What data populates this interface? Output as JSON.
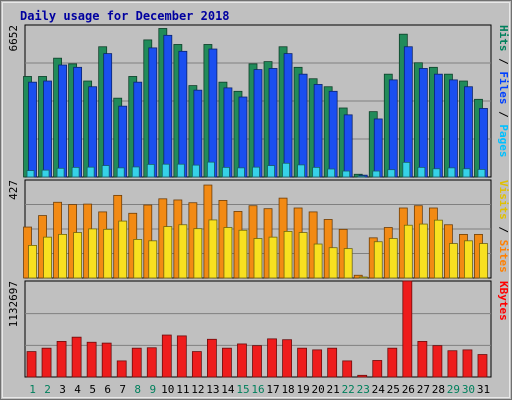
{
  "chart_data": [
    {
      "type": "bar",
      "panel": "top",
      "title": "Daily usage for December 2018",
      "ymax_label": "6652",
      "ylim": [
        0,
        6652
      ],
      "grid": true,
      "legend_right": [
        {
          "text": "Hits",
          "color": "#00805c"
        },
        {
          "text": "Files",
          "color": "#0040ff"
        },
        {
          "text": "Pages",
          "color": "#00c0ff"
        }
      ],
      "categories": [
        "1",
        "2",
        "3",
        "4",
        "5",
        "6",
        "7",
        "8",
        "9",
        "10",
        "11",
        "12",
        "13",
        "14",
        "15",
        "16",
        "17",
        "18",
        "19",
        "20",
        "21",
        "22",
        "23",
        "24",
        "25",
        "26",
        "27",
        "28",
        "29",
        "30",
        "31"
      ],
      "series": [
        {
          "name": "Hits",
          "color": "#218b5a",
          "values": [
            4400,
            4400,
            5200,
            4950,
            4200,
            5700,
            3450,
            4400,
            6000,
            6500,
            5800,
            4000,
            5800,
            4150,
            3750,
            4950,
            5050,
            5700,
            4800,
            4300,
            3950,
            3020,
            120,
            2860,
            4500,
            6250,
            5000,
            4800,
            4500,
            4200,
            3400
          ]
        },
        {
          "name": "Files",
          "color": "#1a4ff0",
          "values": [
            4150,
            4200,
            4900,
            4800,
            3950,
            5400,
            3100,
            4150,
            5650,
            6200,
            5500,
            3800,
            5600,
            3900,
            3500,
            4700,
            4750,
            5400,
            4500,
            4050,
            3750,
            2720,
            80,
            2540,
            4250,
            5700,
            4750,
            4500,
            4250,
            3950,
            3000
          ]
        },
        {
          "name": "Pages",
          "color": "#36d2e8",
          "values": [
            280,
            300,
            380,
            420,
            430,
            500,
            400,
            440,
            550,
            560,
            560,
            520,
            650,
            420,
            400,
            430,
            500,
            600,
            530,
            420,
            350,
            260,
            30,
            260,
            320,
            640,
            420,
            360,
            400,
            360,
            330
          ]
        }
      ]
    },
    {
      "type": "bar",
      "panel": "middle",
      "ymax_label": "427",
      "ylim": [
        0,
        427
      ],
      "grid": true,
      "legend_right": [
        {
          "text": "Visits",
          "color": "#e0c000"
        },
        {
          "text": "Sites",
          "color": "#ff8000"
        }
      ],
      "categories": [
        "1",
        "2",
        "3",
        "4",
        "5",
        "6",
        "7",
        "8",
        "9",
        "10",
        "11",
        "12",
        "13",
        "14",
        "15",
        "16",
        "17",
        "18",
        "19",
        "20",
        "21",
        "22",
        "23",
        "24",
        "25",
        "26",
        "27",
        "28",
        "29",
        "30",
        "31"
      ],
      "series": [
        {
          "name": "Sites",
          "color": "#f28a14",
          "values": [
            222,
            272,
            330,
            320,
            322,
            288,
            360,
            282,
            318,
            345,
            340,
            328,
            405,
            338,
            290,
            315,
            302,
            348,
            305,
            288,
            255,
            212,
            12,
            175,
            220,
            305,
            315,
            305,
            232,
            190,
            190
          ]
        },
        {
          "name": "Visits",
          "color": "#f8e020",
          "values": [
            142,
            178,
            190,
            198,
            214,
            212,
            248,
            168,
            162,
            224,
            232,
            215,
            253,
            220,
            208,
            172,
            178,
            203,
            198,
            148,
            132,
            128,
            4,
            158,
            172,
            230,
            235,
            252,
            150,
            162,
            150
          ]
        }
      ]
    },
    {
      "type": "bar",
      "panel": "bottom",
      "ymax_label": "1132697",
      "ylim": [
        0,
        1132697
      ],
      "grid": true,
      "legend_right": [
        {
          "text": "KBytes",
          "color": "#ff0000"
        }
      ],
      "categories": [
        "1",
        "2",
        "3",
        "4",
        "5",
        "6",
        "7",
        "8",
        "9",
        "10",
        "11",
        "12",
        "13",
        "14",
        "15",
        "16",
        "17",
        "18",
        "19",
        "20",
        "21",
        "22",
        "23",
        "24",
        "25",
        "26",
        "27",
        "28",
        "29",
        "30",
        "31"
      ],
      "weekend_days": [
        "1",
        "2",
        "8",
        "9",
        "15",
        "16",
        "22",
        "23",
        "29",
        "30"
      ],
      "series": [
        {
          "name": "KBytes",
          "color": "#ee1c1c",
          "values": [
            300000,
            340000,
            420000,
            470000,
            410000,
            400000,
            190000,
            340000,
            345000,
            495000,
            485000,
            300000,
            445000,
            340000,
            390000,
            370000,
            450000,
            440000,
            340000,
            320000,
            340000,
            190000,
            20000,
            195000,
            340000,
            1140000,
            420000,
            370000,
            310000,
            320000,
            265000
          ]
        }
      ]
    }
  ]
}
